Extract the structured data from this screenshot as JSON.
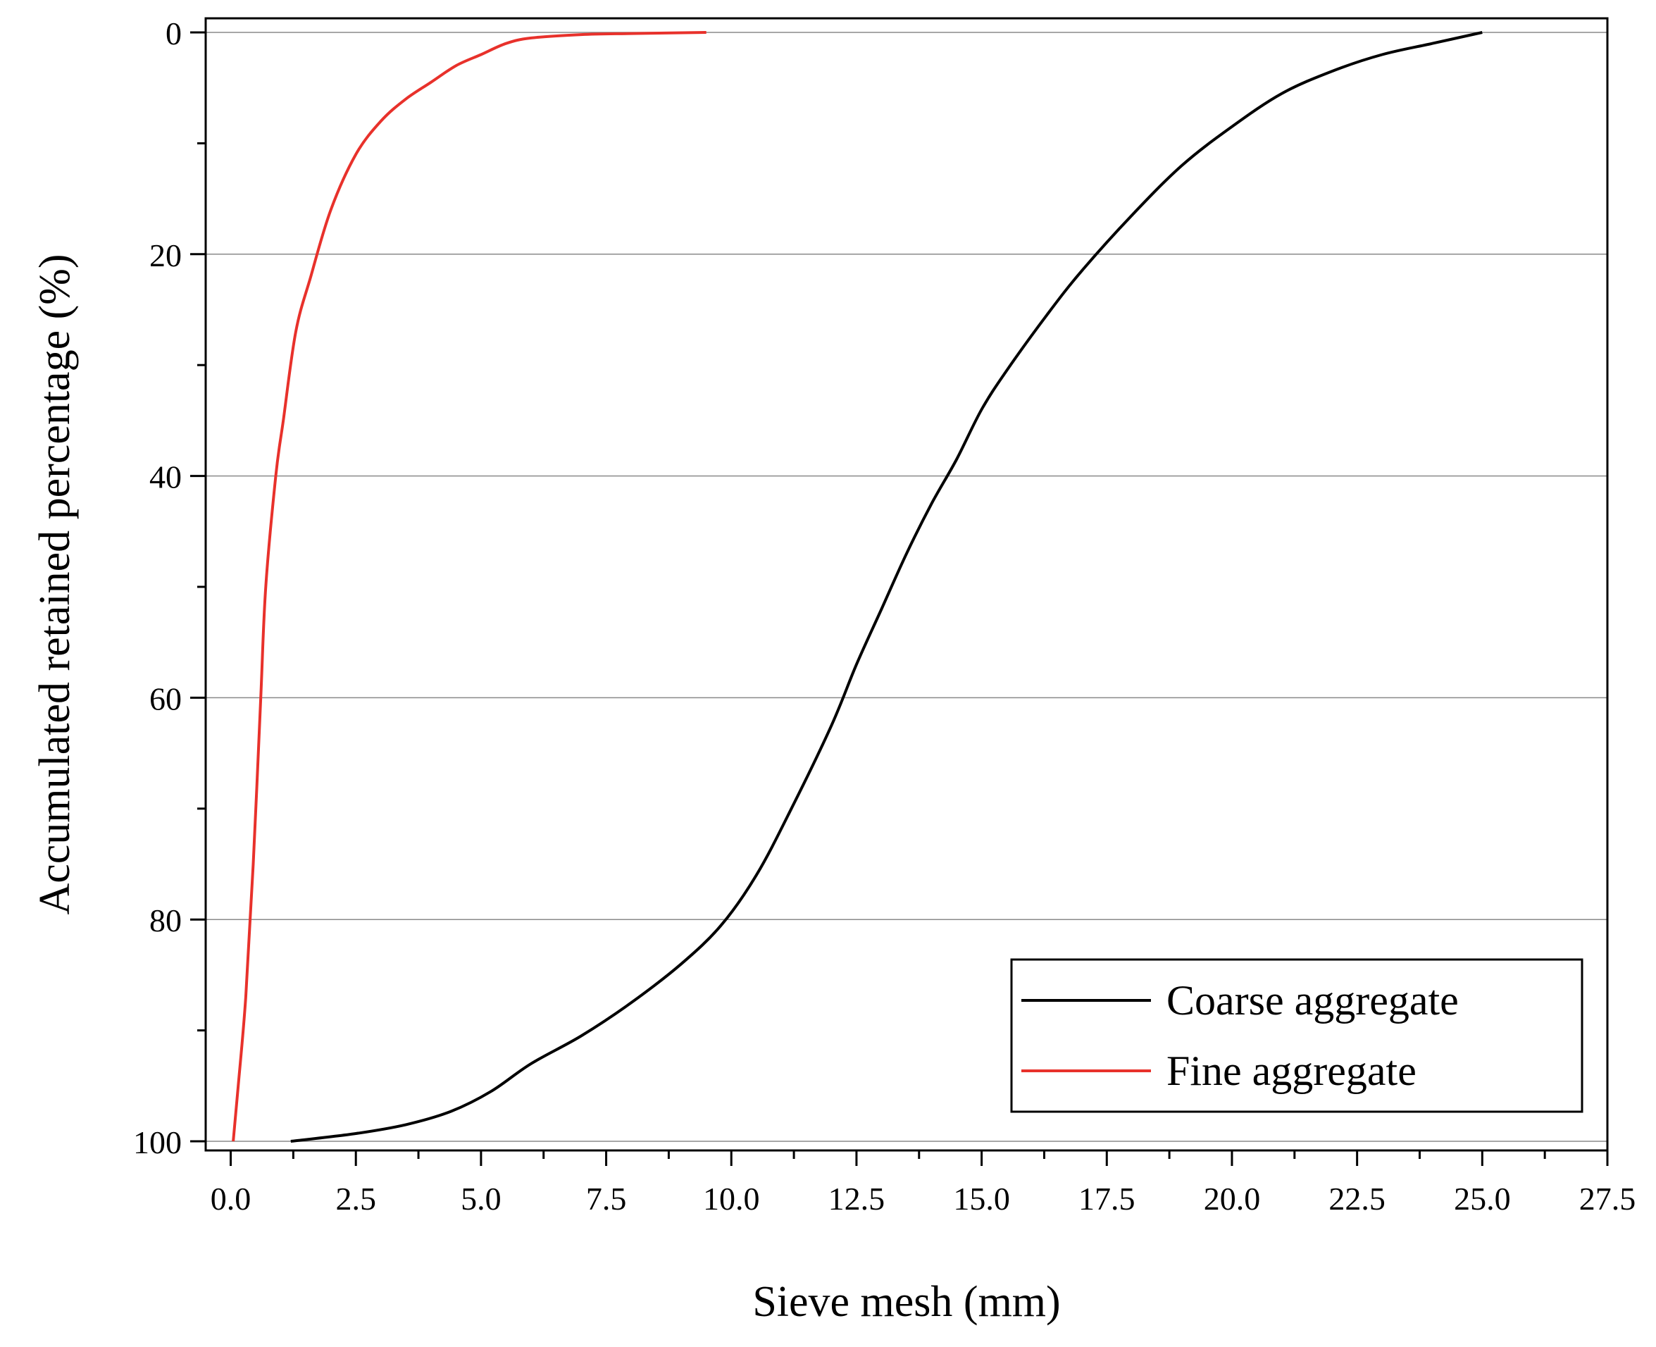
{
  "chart_data": {
    "type": "line",
    "title": "",
    "xlabel": "Sieve mesh (mm)",
    "ylabel": "Accumulated retained percentage (%)",
    "xlim": [
      -0.5,
      27.5
    ],
    "ylim": [
      0,
      100
    ],
    "y_inverted": true,
    "grid": "horizontal",
    "legend_position": "bottom-right",
    "x_ticks": [
      0.0,
      2.5,
      5.0,
      7.5,
      10.0,
      12.5,
      15.0,
      17.5,
      20.0,
      22.5,
      25.0,
      27.5
    ],
    "x_tick_labels": [
      "0.0",
      "2.5",
      "5.0",
      "7.5",
      "10.0",
      "12.5",
      "15.0",
      "17.5",
      "20.0",
      "22.5",
      "25.0",
      "27.5"
    ],
    "y_ticks": [
      0,
      20,
      40,
      60,
      80,
      100
    ],
    "y_tick_labels": [
      "0",
      "20",
      "40",
      "60",
      "80",
      "100"
    ],
    "series": [
      {
        "name": "Coarse aggregate",
        "color": "#000000",
        "points": [
          [
            1.2,
            100
          ],
          [
            2.5,
            99.3
          ],
          [
            3.5,
            98.5
          ],
          [
            4.4,
            97.3
          ],
          [
            5.2,
            95.5
          ],
          [
            6.0,
            93.0
          ],
          [
            7.0,
            90.5
          ],
          [
            8.0,
            87.5
          ],
          [
            9.0,
            84.0
          ],
          [
            9.8,
            80.5
          ],
          [
            10.5,
            76.0
          ],
          [
            11.2,
            70.0
          ],
          [
            12.0,
            62.5
          ],
          [
            12.5,
            57.0
          ],
          [
            13.0,
            52.0
          ],
          [
            13.5,
            47.0
          ],
          [
            14.0,
            42.5
          ],
          [
            14.5,
            38.5
          ],
          [
            15.0,
            34.0
          ],
          [
            15.5,
            30.5
          ],
          [
            16.3,
            25.5
          ],
          [
            17.0,
            21.5
          ],
          [
            18.0,
            16.5
          ],
          [
            19.0,
            12.0
          ],
          [
            20.0,
            8.5
          ],
          [
            21.0,
            5.5
          ],
          [
            22.0,
            3.5
          ],
          [
            23.0,
            2.0
          ],
          [
            24.0,
            1.0
          ],
          [
            25.0,
            0.0
          ]
        ]
      },
      {
        "name": "Fine aggregate",
        "color": "#e8312b",
        "points": [
          [
            0.05,
            100
          ],
          [
            0.15,
            95
          ],
          [
            0.3,
            87
          ],
          [
            0.45,
            75
          ],
          [
            0.6,
            60
          ],
          [
            0.7,
            50
          ],
          [
            0.9,
            40
          ],
          [
            1.05,
            35
          ],
          [
            1.3,
            27
          ],
          [
            1.6,
            22
          ],
          [
            2.0,
            16
          ],
          [
            2.5,
            11
          ],
          [
            3.0,
            8
          ],
          [
            3.5,
            6
          ],
          [
            4.0,
            4.5
          ],
          [
            4.5,
            3.0
          ],
          [
            5.0,
            2.0
          ],
          [
            5.5,
            1.0
          ],
          [
            6.0,
            0.5
          ],
          [
            7.0,
            0.2
          ],
          [
            8.0,
            0.1
          ],
          [
            9.5,
            0.0
          ]
        ]
      }
    ]
  }
}
